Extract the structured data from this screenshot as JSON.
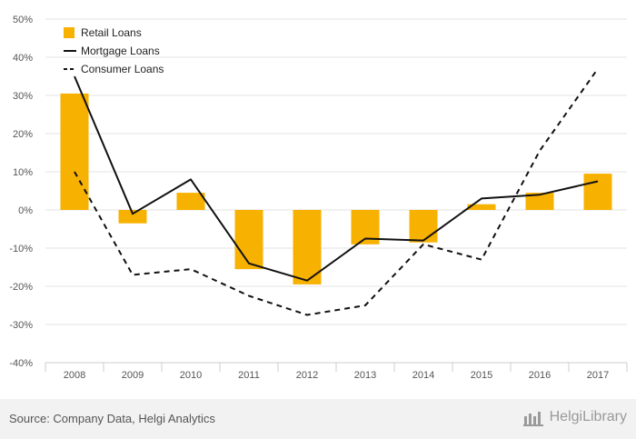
{
  "chart_data": {
    "type": "bar",
    "categories": [
      "2008",
      "2009",
      "2010",
      "2011",
      "2012",
      "2013",
      "2014",
      "2015",
      "2016",
      "2017"
    ],
    "series": [
      {
        "name": "Retail Loans",
        "kind": "bar",
        "values": [
          30.5,
          -3.5,
          4.5,
          -15.5,
          -19.5,
          -9.0,
          -8.5,
          1.5,
          4.5,
          9.5
        ]
      },
      {
        "name": "Mortgage Loans",
        "kind": "line",
        "values": [
          35.0,
          -1.0,
          8.0,
          -14.0,
          -18.5,
          -7.5,
          -8.0,
          3.0,
          4.0,
          7.5
        ]
      },
      {
        "name": "Consumer Loans",
        "kind": "dashed-line",
        "values": [
          10.0,
          -17.0,
          -15.5,
          -22.5,
          -27.5,
          -25.0,
          -9.0,
          -13.0,
          15.5,
          37.0
        ]
      }
    ],
    "yticks": [
      "50%",
      "40%",
      "30%",
      "20%",
      "10%",
      "0%",
      "-10%",
      "-20%",
      "-30%",
      "-40%"
    ],
    "ylim": [
      -40,
      50
    ],
    "legend_position": "top-left",
    "colors": {
      "bar": "#f7b100",
      "line": "#111111",
      "grid": "#e3e3e3"
    }
  },
  "footer": {
    "source": "Source: Company Data, Helgi Analytics",
    "brand": "HelgiLibrary"
  }
}
